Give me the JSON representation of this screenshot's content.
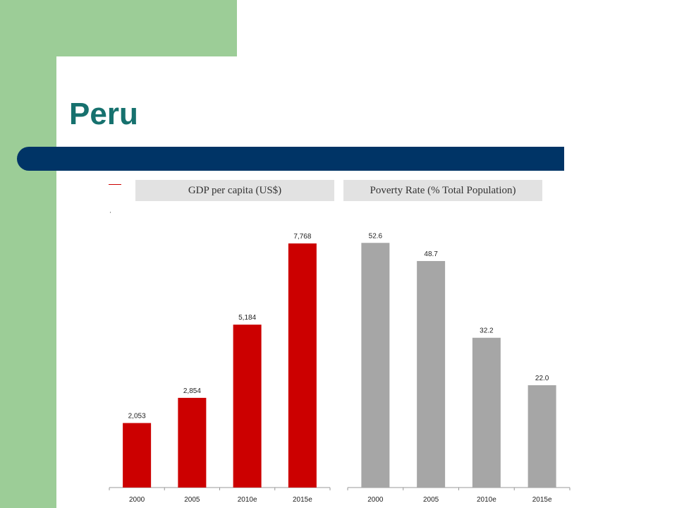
{
  "slide": {
    "title": "Peru"
  },
  "colors": {
    "background_green": "#9ccd97",
    "title_text": "#16716e",
    "title_bar": "#003466",
    "gdp_bar": "#cc0000",
    "poverty_bar": "#a6a6a6"
  },
  "chart_data": [
    {
      "type": "bar",
      "title": "GDP per capita (US$)",
      "categories": [
        "2000",
        "2005",
        "2010e",
        "2015e"
      ],
      "values": [
        2053,
        2854,
        5184,
        7768
      ],
      "value_labels": [
        "2,053",
        "2,854",
        "5,184",
        "7,768"
      ],
      "ylim": [
        0,
        8600
      ],
      "xlabel": "",
      "ylabel": "",
      "grid": false,
      "color": "#cc0000"
    },
    {
      "type": "bar",
      "title": "Poverty Rate (% Total Population)",
      "categories": [
        "2000",
        "2005",
        "2010e",
        "2015e"
      ],
      "values": [
        52.6,
        48.7,
        32.2,
        22.0
      ],
      "value_labels": [
        "52.6",
        "48.7",
        "32.2",
        "22.0"
      ],
      "ylim": [
        0,
        58.1
      ],
      "xlabel": "",
      "ylabel": "",
      "grid": false,
      "color": "#a6a6a6"
    }
  ]
}
